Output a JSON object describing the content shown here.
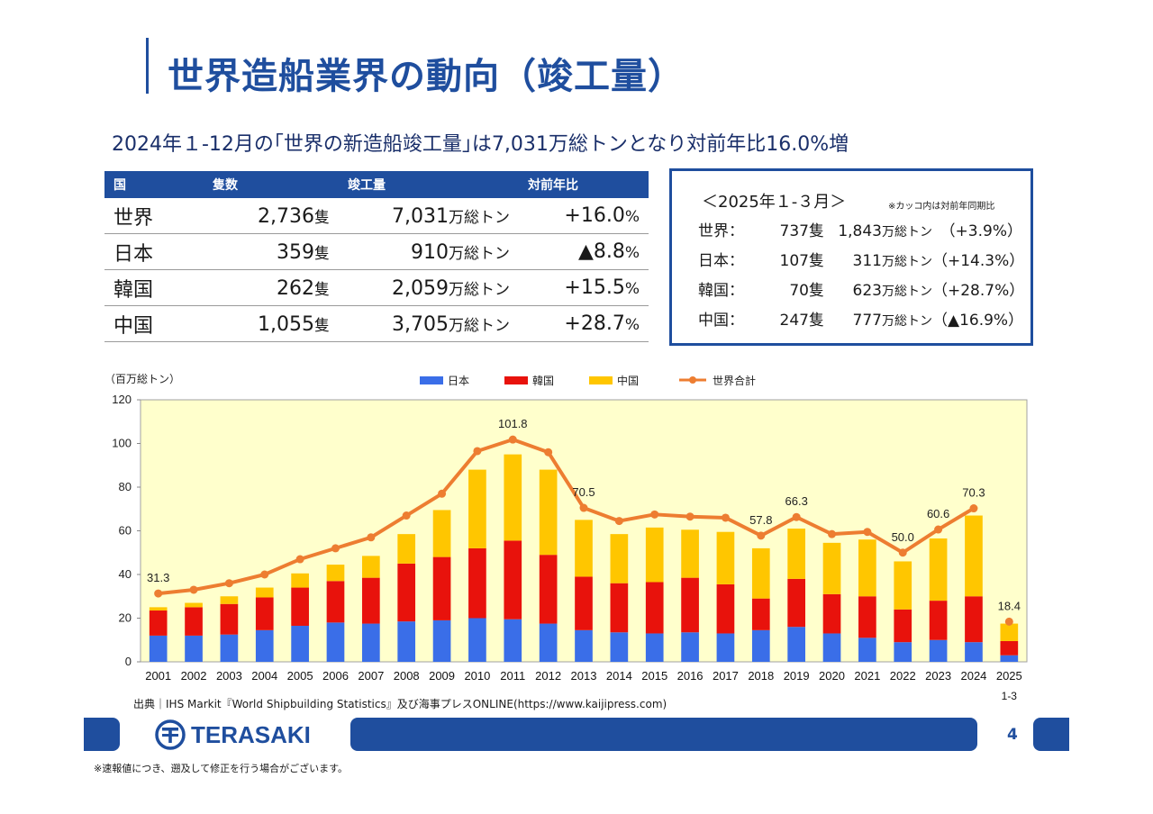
{
  "title": "世界造船業界の動向（竣工量）",
  "subtitle": "2024年１-12月の｢世界の新造船竣工量｣は7,031万総トンとなり対前年比16.0%増",
  "table": {
    "headers": [
      "国",
      "隻数",
      "竣工量",
      "対前年比"
    ],
    "rows": [
      {
        "country": "世界",
        "ships": "2,736",
        "ships_unit": "隻",
        "gt": "7,031",
        "gt_unit": "万総トン",
        "yoy": "+16.0",
        "pct": "%"
      },
      {
        "country": "日本",
        "ships": "359",
        "ships_unit": "隻",
        "gt": "910",
        "gt_unit": "万総トン",
        "yoy": "▲8.8",
        "pct": "%"
      },
      {
        "country": "韓国",
        "ships": "262",
        "ships_unit": "隻",
        "gt": "2,059",
        "gt_unit": "万総トン",
        "yoy": "+15.5",
        "pct": "%"
      },
      {
        "country": "中国",
        "ships": "1,055",
        "ships_unit": "隻",
        "gt": "3,705",
        "gt_unit": "万総トン",
        "yoy": "+28.7",
        "pct": "%"
      }
    ]
  },
  "q1_box": {
    "title": "＜2025年１-３月＞",
    "note": "※カッコ内は対前年同期比",
    "rows": [
      {
        "name": "世界：",
        "ships": "737隻",
        "gt": "1,843",
        "gt_unit": "万総トン",
        "pct": "（+3.9%）"
      },
      {
        "name": "日本：",
        "ships": "107隻",
        "gt": "311",
        "gt_unit": "万総トン",
        "pct": "（+14.3%）"
      },
      {
        "name": "韓国：",
        "ships": "70隻",
        "gt": "623",
        "gt_unit": "万総トン",
        "pct": "（+28.7%）"
      },
      {
        "name": "中国：",
        "ships": "247隻",
        "gt": "777",
        "gt_unit": "万総トン",
        "pct": "（▲16.9%）"
      }
    ]
  },
  "chart_data": {
    "type": "bar",
    "stacked": true,
    "ylabel": "（百万総トン）",
    "ylim": [
      0,
      120
    ],
    "yticks": [
      0,
      20,
      40,
      60,
      80,
      100,
      120
    ],
    "categories": [
      "2001",
      "2002",
      "2003",
      "2004",
      "2005",
      "2006",
      "2007",
      "2008",
      "2009",
      "2010",
      "2011",
      "2012",
      "2013",
      "2014",
      "2015",
      "2016",
      "2017",
      "2018",
      "2019",
      "2020",
      "2021",
      "2022",
      "2023",
      "2024",
      "2025"
    ],
    "category_sublabels": {
      "2025": "1-3"
    },
    "series": [
      {
        "name": "日本",
        "color": "#3a6ee8",
        "values": [
          12,
          12,
          12.5,
          14.5,
          16.5,
          18,
          17.5,
          18.5,
          19,
          20,
          19.5,
          17.5,
          14.5,
          13.5,
          13,
          13.5,
          13,
          14.5,
          16,
          13,
          11,
          9,
          10,
          9,
          3
        ]
      },
      {
        "name": "韓国",
        "color": "#e8120c",
        "values": [
          11.5,
          13,
          14,
          15,
          17.5,
          19,
          21,
          26.5,
          29,
          32,
          36,
          31.5,
          24.5,
          22.5,
          23.5,
          25,
          22.5,
          14.5,
          22,
          18,
          19,
          15,
          18,
          21,
          6.5
        ]
      },
      {
        "name": "中国",
        "color": "#ffc600",
        "values": [
          1.5,
          2,
          3.5,
          4.5,
          6.5,
          7.5,
          10,
          13.5,
          21.5,
          36,
          39.5,
          39,
          26,
          22.5,
          25,
          22,
          24,
          23,
          23,
          23.5,
          26,
          22,
          28.5,
          37,
          8
        ]
      }
    ],
    "line": {
      "name": "世界合計",
      "color": "#ed7d31",
      "values": [
        31.3,
        33,
        36,
        40,
        47,
        52,
        57,
        67,
        77,
        96.5,
        101.8,
        96,
        70.5,
        64.5,
        67.5,
        66.5,
        66,
        57.8,
        66.3,
        58.5,
        59.5,
        50.0,
        60.6,
        70.3,
        18.4
      ],
      "labels": {
        "2001": "31.3",
        "2011": "101.8",
        "2013": "70.5",
        "2018": "57.8",
        "2019": "66.3",
        "2022": "50.0",
        "2023": "60.6",
        "2024": "70.3",
        "2025": "18.4"
      }
    },
    "plot_bg": "#ffffcc"
  },
  "source": "出典｜IHS Markit『World Shipbuilding Statistics』及び海事プレスONLINE(https://www.kaijipress.com)",
  "logo_text": "TERASAKI",
  "page_number": "4",
  "footnote": "※速報値につき、遡及して修正を行う場合がございます。"
}
